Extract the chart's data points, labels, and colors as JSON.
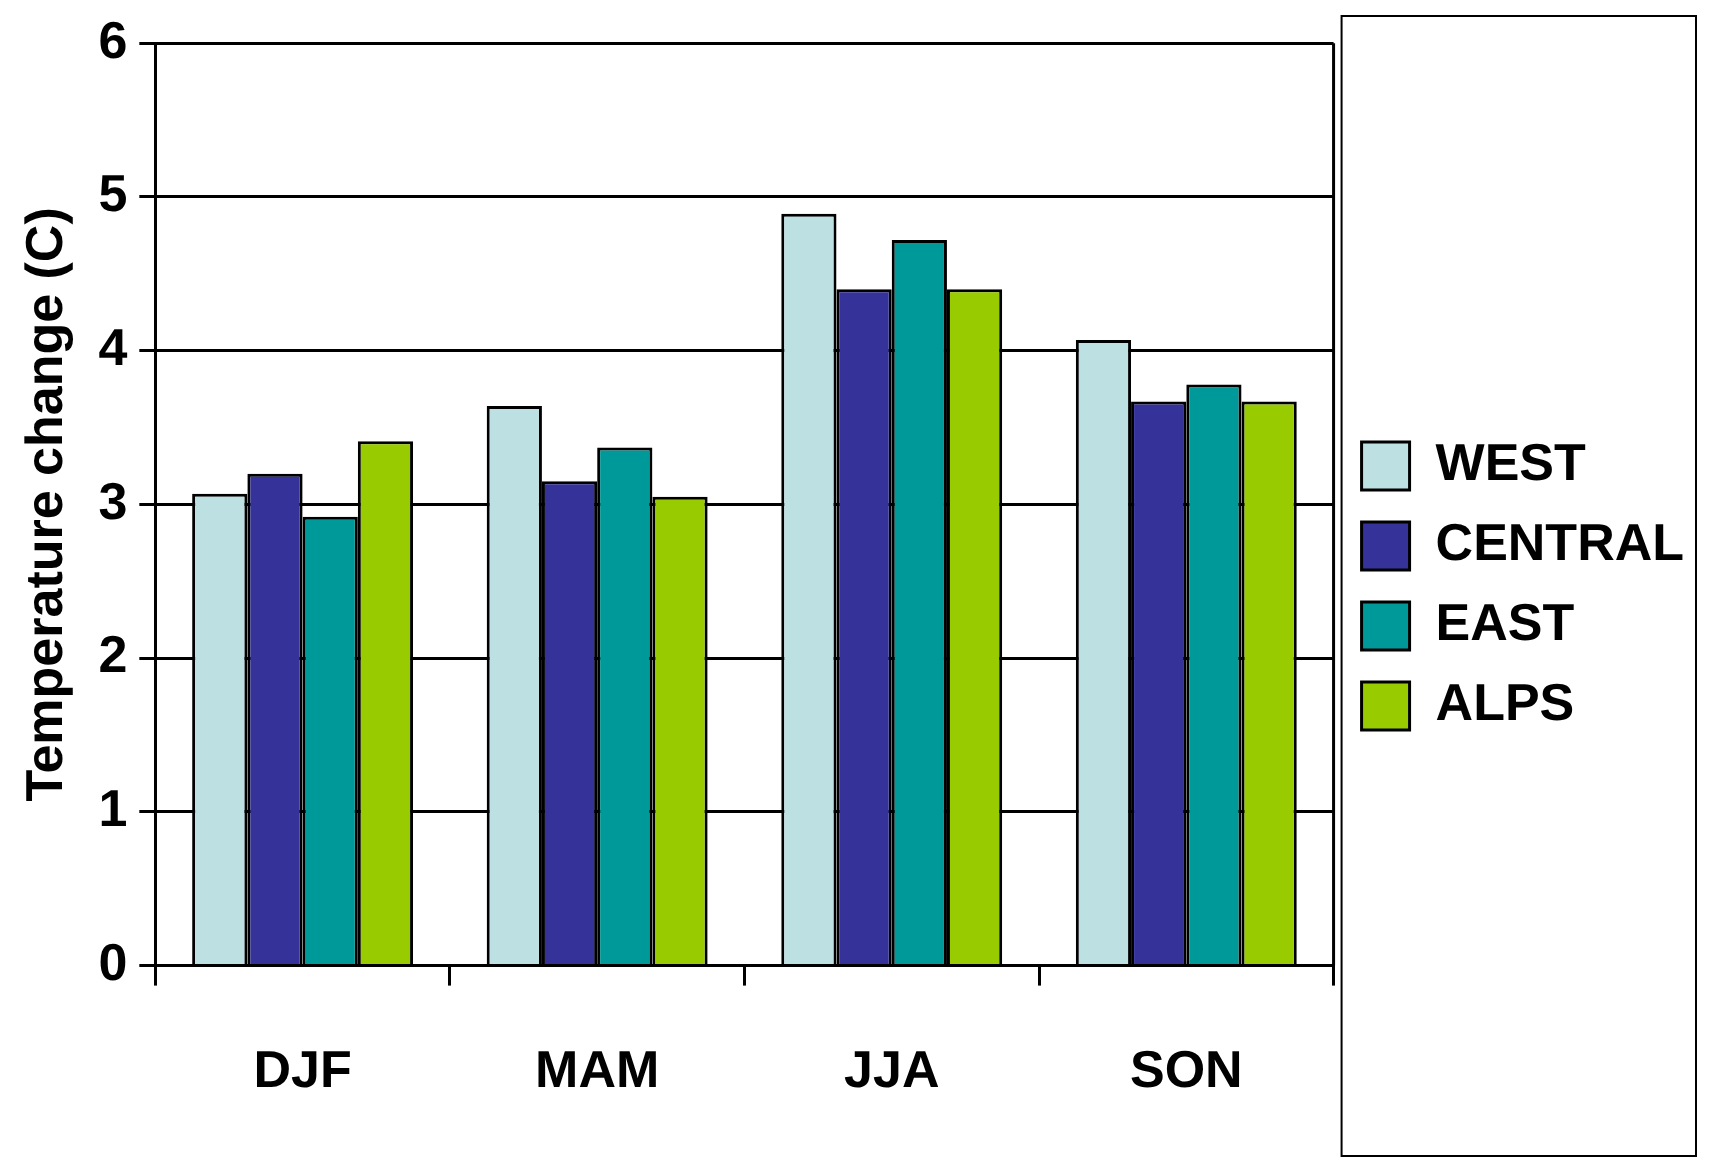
{
  "chart_data": {
    "type": "bar",
    "ylabel": "Temperature change (C)",
    "categories": [
      "DJF",
      "MAM",
      "JJA",
      "SON"
    ],
    "series": [
      {
        "name": "WEST",
        "color": "#bde0e3",
        "values": [
          3.07,
          3.64,
          4.89,
          4.07
        ]
      },
      {
        "name": "CENTRAL",
        "color": "#353399",
        "values": [
          3.2,
          3.15,
          4.4,
          3.67
        ]
      },
      {
        "name": "EAST",
        "color": "#009999",
        "values": [
          2.92,
          3.37,
          4.72,
          3.78
        ]
      },
      {
        "name": "ALPS",
        "color": "#99cc00",
        "values": [
          3.41,
          3.05,
          4.4,
          3.67
        ]
      }
    ],
    "ylim": [
      0,
      6
    ],
    "yticks": [
      0,
      1,
      2,
      3,
      4,
      5,
      6
    ],
    "grid": "y",
    "legend": "right"
  }
}
